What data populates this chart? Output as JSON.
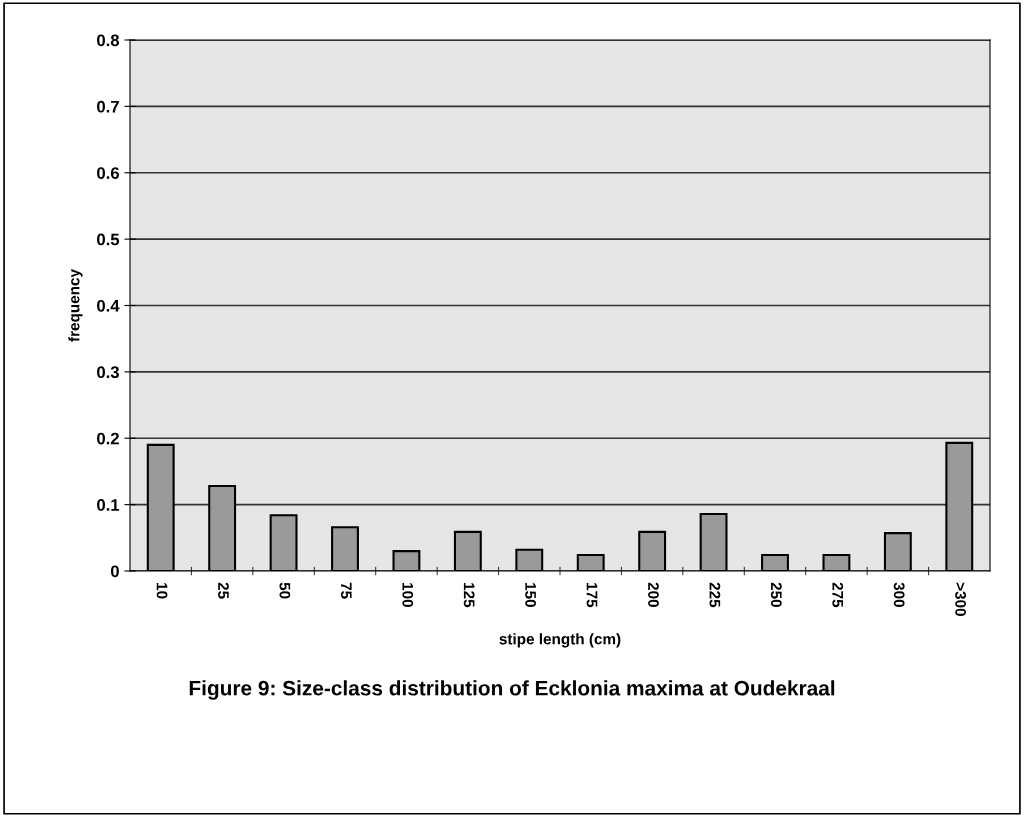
{
  "chart_data": {
    "type": "bar",
    "title": "Figure 9: Size-class distribution of Ecklonia maxima at Oudekraal",
    "xlabel": "stipe length (cm)",
    "ylabel": "frequency",
    "categories": [
      "10",
      "25",
      "50",
      "75",
      "100",
      "125",
      "150",
      "175",
      "200",
      "225",
      "250",
      "275",
      "300",
      ">300"
    ],
    "values": [
      0.19,
      0.128,
      0.084,
      0.066,
      0.03,
      0.059,
      0.032,
      0.024,
      0.059,
      0.086,
      0.024,
      0.024,
      0.057,
      0.193
    ],
    "color": "#9a9a9a",
    "ylim": [
      0,
      0.8
    ],
    "yticks": [
      0,
      0.1,
      0.2,
      0.3,
      0.4,
      0.5,
      0.6,
      0.7,
      0.8
    ],
    "grid": "y"
  }
}
